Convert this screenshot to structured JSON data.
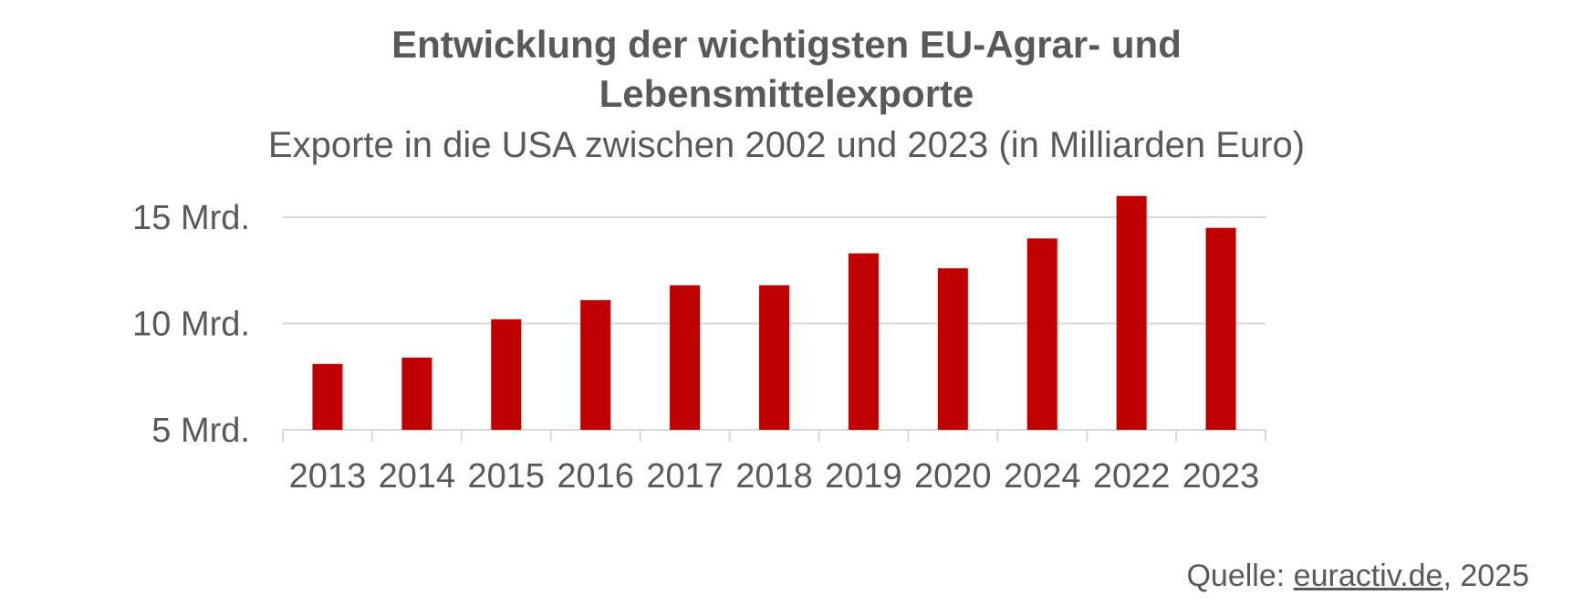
{
  "chart_data": {
    "type": "bar",
    "title": "Entwicklung der wichtigsten EU-Agrar- und Lebensmittelexporte",
    "subtitle": "Exporte in die USA zwischen 2002 und 2023 (in Milliarden Euro)",
    "categories": [
      "2013",
      "2014",
      "2015",
      "2016",
      "2017",
      "2018",
      "2019",
      "2020",
      "2024",
      "2022",
      "2023"
    ],
    "values": [
      8.1,
      8.4,
      10.2,
      11.1,
      11.8,
      11.8,
      13.3,
      12.6,
      14.0,
      16.0,
      14.5
    ],
    "xlabel": "",
    "ylabel": "",
    "ylim": [
      5,
      16
    ],
    "yticks": [
      5,
      10,
      15
    ],
    "ytick_labels": [
      "5 Mrd.",
      "10 Mrd.",
      "15 Mrd."
    ],
    "grid": true,
    "bar_color": "#C00000",
    "grid_color": "#D9D9D9"
  },
  "source": {
    "prefix": "Quelle: ",
    "link_text": "euractiv.de",
    "suffix": ", 2025"
  }
}
